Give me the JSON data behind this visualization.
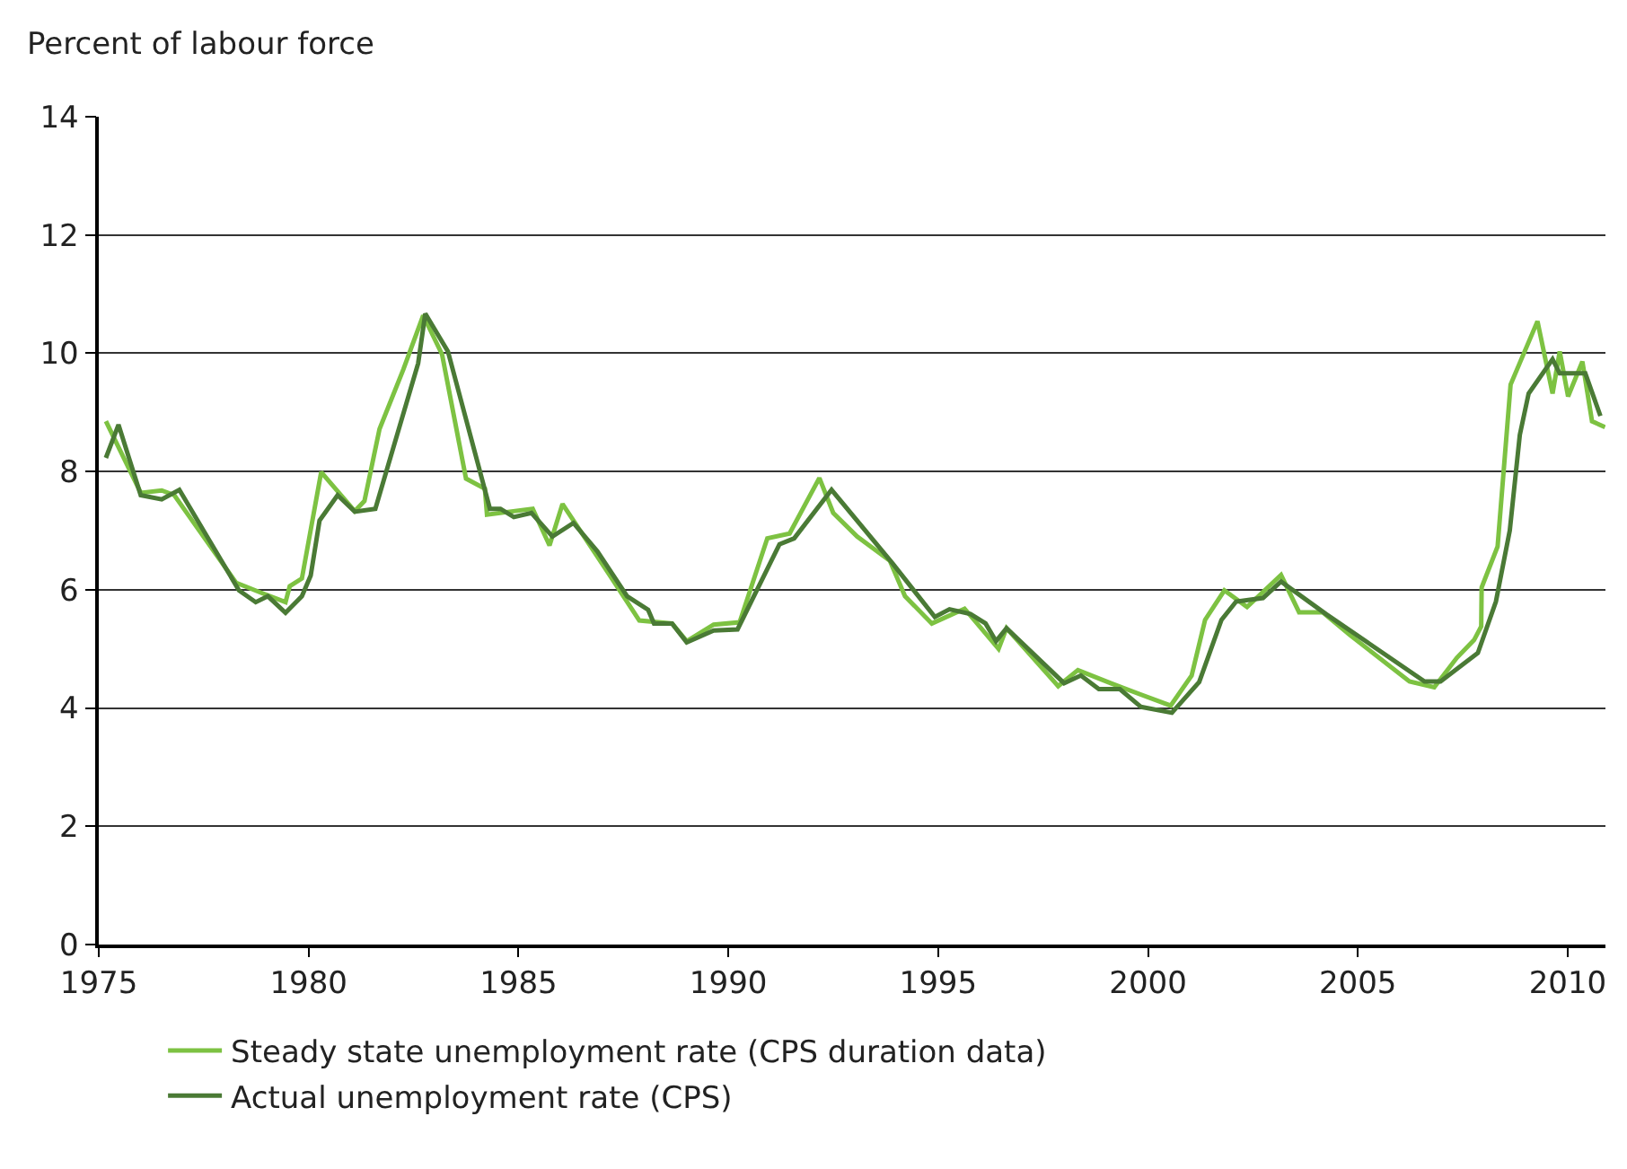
{
  "chart_data": {
    "type": "line",
    "ylabel": "Percent of labour force",
    "xlim": [
      1975,
      2010.9
    ],
    "xticks": [
      1975,
      1980,
      1985,
      1990,
      1995,
      2000,
      2005,
      2010
    ],
    "ylim": [
      0,
      14
    ],
    "yticks": [
      0,
      2,
      4,
      6,
      8,
      10,
      12,
      14
    ],
    "grid": "y",
    "legend": "bottom",
    "marker": "none",
    "line_style": "solid",
    "series": [
      {
        "name": "Steady state unemployment rate (CPS duration data)",
        "color": "#7dc242",
        "x": [
          1975.17,
          1976.0,
          1976.5,
          1976.8,
          1978.27,
          1978.9,
          1979.45,
          1979.55,
          1979.84,
          1980.3,
          1981.1,
          1981.33,
          1981.69,
          1982.26,
          1982.73,
          1983.18,
          1983.75,
          1984.2,
          1984.25,
          1985.34,
          1985.74,
          1986.05,
          1987.16,
          1987.88,
          1988.66,
          1989.01,
          1989.65,
          1990.27,
          1990.93,
          1991.46,
          1992.17,
          1992.5,
          1993.07,
          1993.85,
          1994.21,
          1994.85,
          1995.63,
          1996.44,
          1996.63,
          1997.86,
          1998.33,
          1999.11,
          2000.54,
          2001.04,
          2001.36,
          2001.82,
          2002.36,
          2003.17,
          2003.6,
          2004.16,
          2004.8,
          2006.23,
          2006.82,
          2007.36,
          2007.77,
          2007.94,
          2007.95,
          2008.33,
          2008.64,
          2009.28,
          2009.64,
          2009.81,
          2010.01,
          2010.35,
          2010.58,
          2010.89
        ],
        "values": [
          8.85,
          7.64,
          7.68,
          7.6,
          6.12,
          5.94,
          5.79,
          6.06,
          6.19,
          7.99,
          7.33,
          7.5,
          8.72,
          9.73,
          10.64,
          9.98,
          7.88,
          7.71,
          7.27,
          7.37,
          6.75,
          7.45,
          6.26,
          5.48,
          5.43,
          5.13,
          5.41,
          5.45,
          6.87,
          6.95,
          7.89,
          7.3,
          6.9,
          6.49,
          5.89,
          5.43,
          5.68,
          5.0,
          5.35,
          4.37,
          4.64,
          4.42,
          4.04,
          4.55,
          5.49,
          5.99,
          5.71,
          6.25,
          5.62,
          5.62,
          5.24,
          4.45,
          4.35,
          4.85,
          5.15,
          5.38,
          6.04,
          6.73,
          9.47,
          10.54,
          9.32,
          10.03,
          9.27,
          9.86,
          8.85,
          8.75
        ]
      },
      {
        "name": "Actual unemployment rate (CPS)",
        "color": "#4a7a35",
        "x": [
          1975.17,
          1975.47,
          1976.0,
          1976.5,
          1976.92,
          1978.34,
          1978.74,
          1979.03,
          1979.45,
          1979.84,
          1980.05,
          1980.26,
          1980.69,
          1981.1,
          1981.59,
          1982.61,
          1982.78,
          1983.32,
          1984.32,
          1984.57,
          1984.89,
          1985.31,
          1985.81,
          1986.31,
          1986.88,
          1987.59,
          1988.09,
          1988.23,
          1988.66,
          1989.01,
          1989.65,
          1990.22,
          1991.22,
          1991.57,
          1992.46,
          1993.92,
          1994.92,
          1995.27,
          1995.77,
          1996.13,
          1996.38,
          1996.63,
          1998.0,
          1998.4,
          1998.83,
          1999.33,
          1999.83,
          2000.57,
          2001.22,
          2001.75,
          2002.1,
          2002.74,
          2003.17,
          2004.24,
          2006.59,
          2006.97,
          2007.86,
          2008.29,
          2008.62,
          2008.86,
          2009.07,
          2009.64,
          2009.81,
          2010.42,
          2010.78
        ],
        "values": [
          8.23,
          8.79,
          7.6,
          7.53,
          7.69,
          5.99,
          5.79,
          5.89,
          5.61,
          5.89,
          6.24,
          7.17,
          7.6,
          7.32,
          7.37,
          9.83,
          10.67,
          10.03,
          7.37,
          7.37,
          7.23,
          7.3,
          6.9,
          7.13,
          6.65,
          5.89,
          5.66,
          5.43,
          5.43,
          5.11,
          5.31,
          5.33,
          6.77,
          6.87,
          7.69,
          6.44,
          5.54,
          5.67,
          5.59,
          5.43,
          5.13,
          5.35,
          4.42,
          4.55,
          4.32,
          4.32,
          4.02,
          3.92,
          4.44,
          5.49,
          5.8,
          5.86,
          6.14,
          5.59,
          4.45,
          4.45,
          4.93,
          5.8,
          7.0,
          8.62,
          9.32,
          9.9,
          9.66,
          9.66,
          8.94
        ]
      }
    ]
  }
}
